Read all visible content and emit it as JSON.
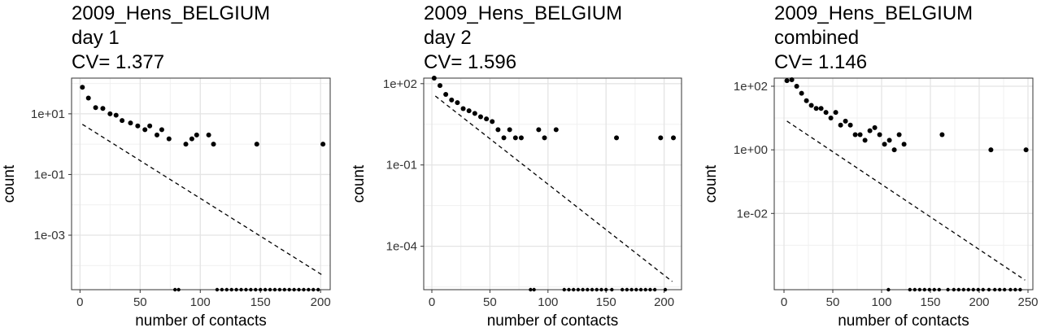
{
  "chart_data": [
    {
      "type": "scatter",
      "title": [
        "2009_Hens_BELGIUM",
        "day 1",
        "CV= 1.377"
      ],
      "xlabel": "number of contacts",
      "ylabel": "count",
      "yscale": "log",
      "xlim": [
        -7,
        208
      ],
      "ylim": [
        1.6e-05,
        150
      ],
      "xticks": [
        0,
        50,
        100,
        150,
        200
      ],
      "xtick_labels": [
        "0",
        "50",
        "100",
        "150",
        "200"
      ],
      "yticks": [
        10,
        0.1,
        0.001
      ],
      "ytick_labels": [
        "1e+01",
        "1e-01",
        "1e-03"
      ],
      "grid": true,
      "series": [
        {
          "kind": "points",
          "x": [
            2,
            7,
            13,
            19,
            25,
            30,
            35,
            42,
            48,
            54,
            58,
            64,
            68,
            74,
            88,
            93,
            97,
            107,
            111,
            147,
            202
          ],
          "y": [
            75,
            33,
            16,
            15,
            10,
            9,
            6,
            5,
            4,
            3,
            4,
            2,
            3,
            1.5,
            1,
            1.5,
            2,
            2,
            1,
            1,
            1
          ]
        },
        {
          "kind": "zero-points",
          "x": [
            79,
            82,
            114,
            118,
            122,
            126,
            130,
            134,
            138,
            142,
            146,
            150,
            154,
            158,
            162,
            166,
            170,
            174,
            178,
            182,
            186,
            190,
            194,
            198
          ]
        },
        {
          "kind": "fit-line",
          "style": "dashed",
          "x": [
            2,
            201
          ],
          "y": [
            4.5,
            5e-05
          ]
        }
      ]
    },
    {
      "type": "scatter",
      "title": [
        "2009_Hens_BELGIUM",
        "day 2",
        "CV= 1.596"
      ],
      "xlabel": "number of contacts",
      "ylabel": "count",
      "yscale": "log",
      "xlim": [
        -7,
        215
      ],
      "ylim": [
        2.5e-06,
        160
      ],
      "xticks": [
        0,
        50,
        100,
        150,
        200
      ],
      "xtick_labels": [
        "0",
        "50",
        "100",
        "150",
        "200"
      ],
      "yticks": [
        100,
        0.1,
        0.0001
      ],
      "ytick_labels": [
        "1e+02",
        "1e-01",
        "1e-04"
      ],
      "grid": true,
      "series": [
        {
          "kind": "points",
          "x": [
            2,
            7,
            12,
            17,
            22,
            27,
            32,
            37,
            42,
            47,
            52,
            57,
            62,
            67,
            72,
            77,
            92,
            97,
            107,
            159,
            197,
            208
          ],
          "y": [
            160,
            85,
            40,
            25,
            20,
            12,
            10,
            8,
            6,
            5,
            4,
            2,
            1,
            2,
            1,
            1,
            2,
            1,
            2,
            1,
            1,
            1
          ]
        },
        {
          "kind": "zero-points",
          "x": [
            85,
            88,
            114,
            118,
            122,
            126,
            130,
            134,
            138,
            142,
            146,
            150,
            155,
            164,
            168,
            172,
            176,
            180,
            184,
            188,
            192,
            201
          ]
        },
        {
          "kind": "fit-line",
          "style": "dashed",
          "x": [
            3,
            207
          ],
          "y": [
            35,
            5e-06
          ]
        }
      ]
    },
    {
      "type": "scatter",
      "title": [
        "2009_Hens_BELGIUM",
        "combined",
        "CV= 1.146"
      ],
      "xlabel": "number of contacts",
      "ylabel": "count",
      "yscale": "log",
      "xlim": [
        -10,
        255
      ],
      "ylim": [
        4e-05,
        180
      ],
      "xticks": [
        0,
        50,
        100,
        150,
        200,
        250
      ],
      "xtick_labels": [
        "0",
        "50",
        "100",
        "150",
        "200",
        "250"
      ],
      "yticks": [
        100,
        1,
        0.01
      ],
      "ytick_labels": [
        "1e+02",
        "1e+00",
        "1e-02"
      ],
      "grid": true,
      "series": [
        {
          "kind": "points",
          "x": [
            3,
            8,
            13,
            18,
            23,
            28,
            33,
            38,
            43,
            48,
            53,
            58,
            63,
            68,
            73,
            78,
            83,
            88,
            93,
            98,
            103,
            108,
            113,
            118,
            123,
            162,
            212,
            248
          ],
          "y": [
            150,
            160,
            100,
            60,
            35,
            25,
            20,
            20,
            15,
            10,
            15,
            6,
            8,
            6,
            3,
            3,
            2,
            4,
            5,
            3,
            1.5,
            2,
            1,
            3,
            1.5,
            3,
            1,
            1
          ]
        },
        {
          "kind": "zero-points",
          "x": [
            107,
            129,
            134,
            139,
            144,
            149,
            154,
            159,
            168,
            174,
            179,
            184,
            189,
            194,
            199,
            204,
            210,
            216,
            221,
            226,
            232,
            237,
            242
          ]
        },
        {
          "kind": "fit-line",
          "style": "dashed",
          "x": [
            3,
            247
          ],
          "y": [
            8,
            8e-05
          ]
        }
      ]
    }
  ]
}
